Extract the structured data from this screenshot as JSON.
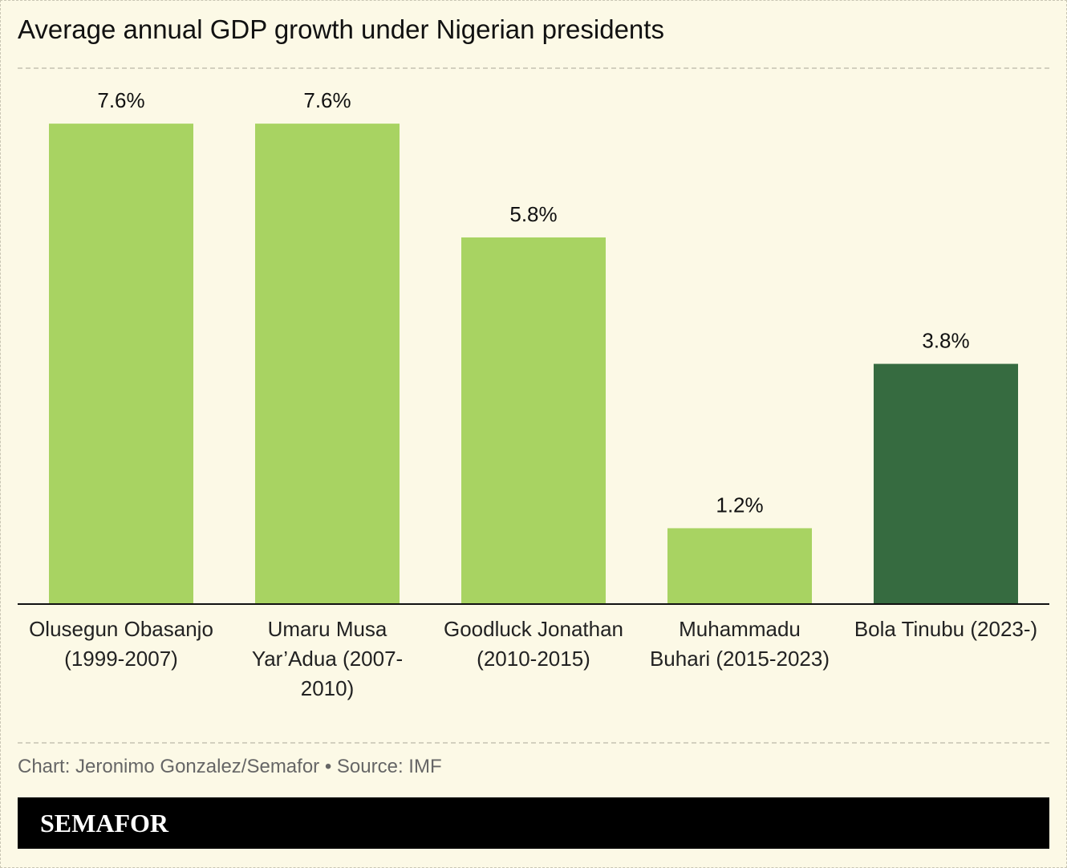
{
  "chart_data": {
    "type": "bar",
    "title": "Average annual GDP growth under Nigerian presidents",
    "categories": [
      "Olusegun Obasanjo (1999-2007)",
      "Umaru Musa Yar’Adua (2007-2010)",
      "Goodluck Jonathan (2010-2015)",
      "Muhammadu Buhari (2015-2023)",
      "Bola Tinubu (2023-)"
    ],
    "values": [
      7.6,
      7.6,
      5.8,
      1.2,
      3.8
    ],
    "value_labels": [
      "7.6%",
      "7.6%",
      "5.8%",
      "1.2%",
      "3.8%"
    ],
    "colors": [
      "#a8d362",
      "#a8d362",
      "#a8d362",
      "#a8d362",
      "#366b40"
    ],
    "source": "Chart: Jeronimo Gonzalez/Semafor • Source: IMF"
  },
  "branding": "SEMAFOR"
}
